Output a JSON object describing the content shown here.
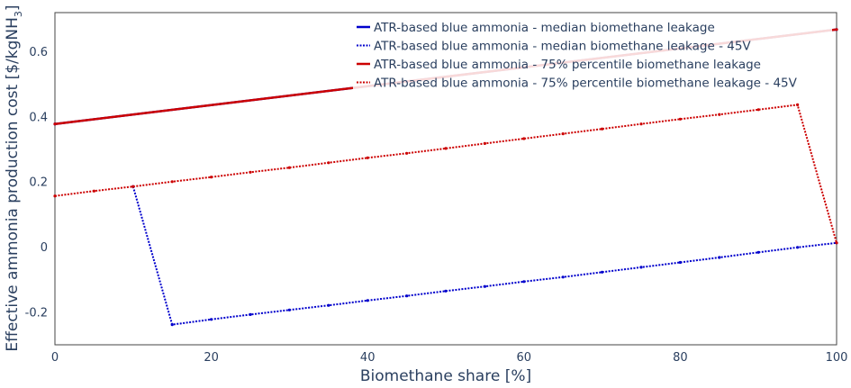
{
  "chart_data": {
    "type": "line",
    "title": "",
    "xlabel": "Biomethane share [%]",
    "ylabel_prefix": "Effective ammonia production cost [$/kgNH",
    "ylabel_sub": "3",
    "ylabel_suffix": "]",
    "xlim": [
      0,
      100
    ],
    "ylim": [
      -0.3,
      0.72
    ],
    "xticks": [
      0,
      20,
      40,
      60,
      80,
      100
    ],
    "yticks": [
      -0.2,
      0,
      0.2,
      0.4,
      0.6
    ],
    "grid": false,
    "legend_position": "top-right",
    "series": [
      {
        "name": "ATR-based blue ammonia - median biomethane leakage",
        "color": "#0000cc",
        "style": "solid",
        "x": [
          0,
          100
        ],
        "y": [
          0.378,
          0.668
        ]
      },
      {
        "name": "ATR-based blue ammonia - median biomethane leakage - 45V",
        "color": "#0000cc",
        "style": "dotted",
        "x": [
          10,
          15,
          20,
          25,
          30,
          35,
          40,
          45,
          50,
          55,
          60,
          65,
          70,
          75,
          80,
          85,
          90,
          95,
          100
        ],
        "y": [
          0.186,
          -0.238,
          -0.222,
          -0.207,
          -0.193,
          -0.179,
          -0.164,
          -0.15,
          -0.135,
          -0.121,
          -0.106,
          -0.092,
          -0.077,
          -0.062,
          -0.047,
          -0.032,
          -0.016,
          -0.001,
          0.013
        ]
      },
      {
        "name": "ATR-based blue ammonia - 75% percentile biomethane leakage",
        "color": "#cc0000",
        "style": "solid",
        "x": [
          0,
          100
        ],
        "y": [
          0.378,
          0.668
        ]
      },
      {
        "name": "ATR-based blue ammonia - 75% percentile biomethane leakage - 45V",
        "color": "#cc0000",
        "style": "dotted",
        "x": [
          0,
          5,
          10,
          15,
          20,
          25,
          30,
          35,
          40,
          45,
          50,
          55,
          60,
          65,
          70,
          75,
          80,
          85,
          90,
          95,
          100
        ],
        "y": [
          0.157,
          0.172,
          0.186,
          0.201,
          0.215,
          0.23,
          0.244,
          0.259,
          0.274,
          0.288,
          0.303,
          0.318,
          0.333,
          0.348,
          0.363,
          0.378,
          0.393,
          0.407,
          0.422,
          0.437,
          0.013
        ]
      }
    ]
  }
}
